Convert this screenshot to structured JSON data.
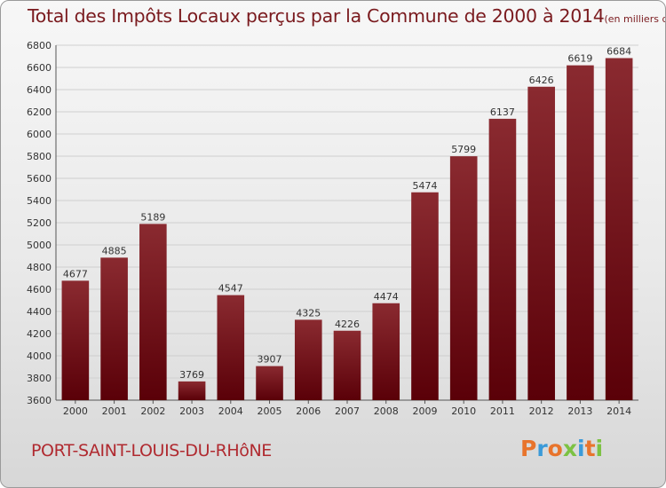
{
  "header": {
    "title": "Total des Impôts Locaux perçus par la Commune de 2000 à 2014",
    "unit": "(en milliers d'€)"
  },
  "footer": {
    "commune": "PORT-SAINT-LOUIS-DU-RHôNE",
    "logo_text": "Proxiti",
    "logo_colors": [
      "#e8742c",
      "#3a9ad9",
      "#e8742c",
      "#7cc243",
      "#3a9ad9",
      "#e8742c",
      "#7cc243"
    ]
  },
  "colors": {
    "bar_top": "#8a2a30",
    "bar_bottom": "#5a0008",
    "gridline": "#cfcfcf",
    "text": "#333333"
  },
  "chart_data": {
    "type": "bar",
    "title": "Total des Impôts Locaux perçus par la Commune de 2000 à 2014",
    "subtitle": "(en milliers d'€)",
    "xlabel": "",
    "ylabel": "",
    "categories": [
      "2000",
      "2001",
      "2002",
      "2003",
      "2004",
      "2005",
      "2006",
      "2007",
      "2008",
      "2009",
      "2010",
      "2011",
      "2012",
      "2013",
      "2014"
    ],
    "values": [
      4677,
      4885,
      5189,
      3769,
      4547,
      3907,
      4325,
      4226,
      4474,
      5474,
      5799,
      6137,
      6426,
      6619,
      6684
    ],
    "data_labels": [
      "4677",
      "4885",
      "5189",
      "3769",
      "4547",
      "3907",
      "4325",
      "4226",
      "4474",
      "5474",
      "5799",
      "6137",
      "6426",
      "6619",
      "6684"
    ],
    "ylim": [
      3600,
      6800
    ],
    "yticks": [
      3600,
      3800,
      4000,
      4200,
      4400,
      4600,
      4800,
      5000,
      5200,
      5400,
      5600,
      5800,
      6000,
      6200,
      6400,
      6600,
      6800
    ],
    "ytick_labels": [
      "3600",
      "3800",
      "4000",
      "4200",
      "4400",
      "4600",
      "4800",
      "5000",
      "5200",
      "5400",
      "5600",
      "5800",
      "6000",
      "6200",
      "6400",
      "6600",
      "6800"
    ],
    "grid": true,
    "legend": "none"
  }
}
